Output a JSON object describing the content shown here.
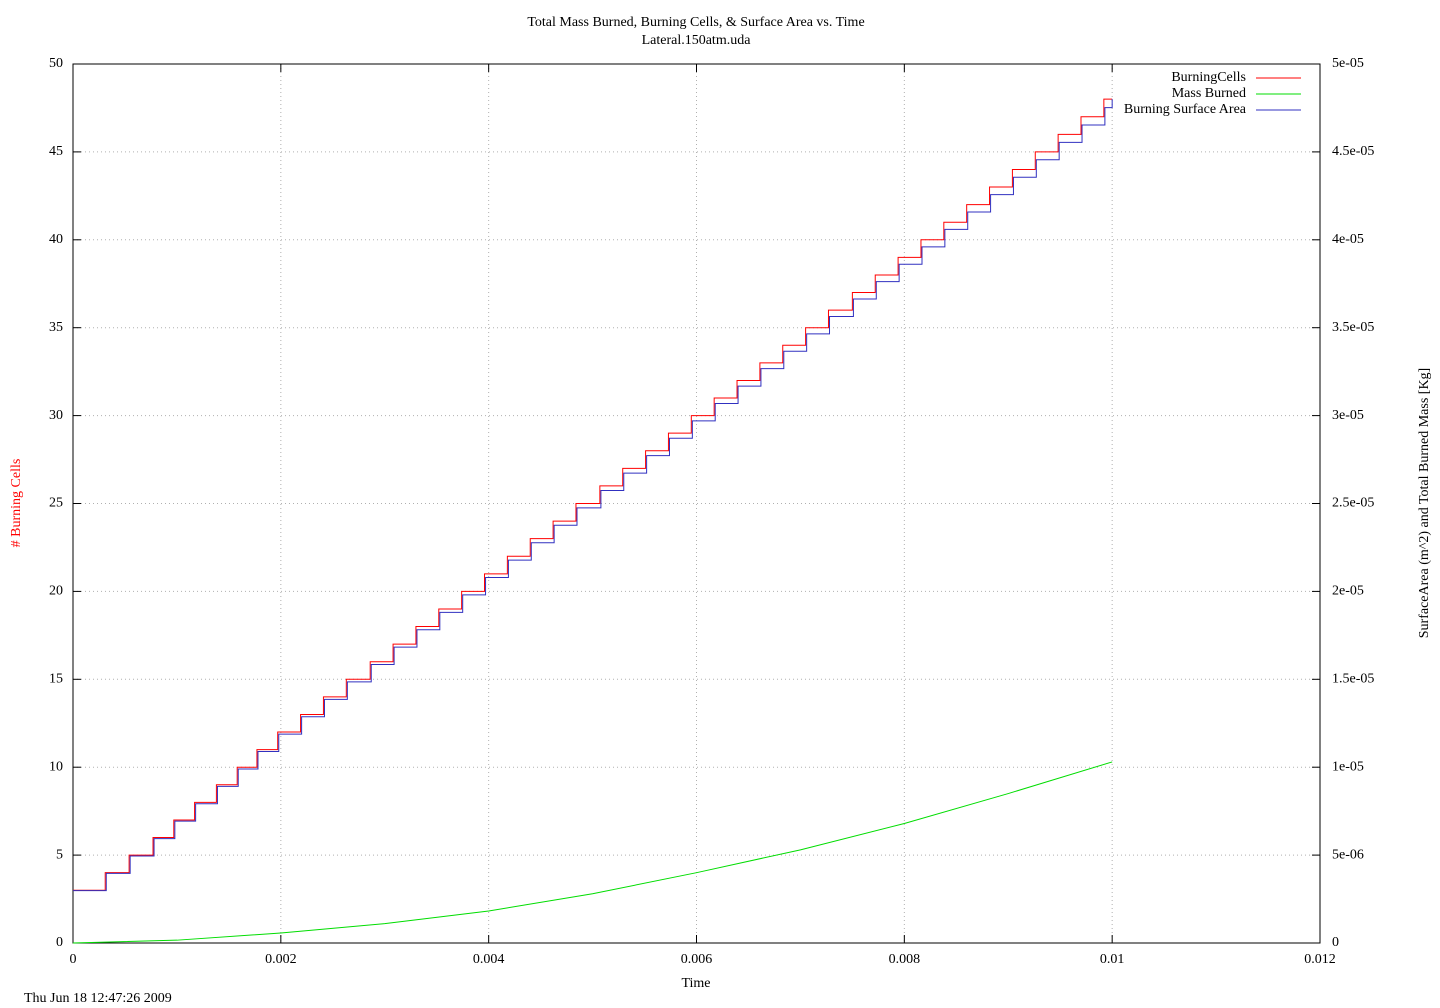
{
  "chart_data": {
    "type": "line",
    "title": "Total Mass Burned, Burning Cells, & Surface Area vs. Time",
    "subtitle": "Lateral.150atm.uda",
    "x_label": "Time",
    "y_label": "# Burning Cells",
    "y_label_color": "#ff0000",
    "y2_label": "SurfaceArea (m^2) and Total Burned Mass [Kg]",
    "timestamp": "Thu Jun 18 12:47:26 2009",
    "xlim": [
      0,
      0.012
    ],
    "xticks": [
      0,
      0.002,
      0.004,
      0.006,
      0.008,
      0.01,
      0.012
    ],
    "ylim": [
      0,
      50
    ],
    "yticks": [
      0,
      5,
      10,
      15,
      20,
      25,
      30,
      35,
      40,
      45,
      50
    ],
    "y2lim": [
      0,
      5e-05
    ],
    "y2ticks": [
      0,
      {
        "value": 5e-06,
        "label": "5e-06"
      },
      {
        "value": 1e-05,
        "label": "1e-05"
      },
      {
        "value": 1.5e-05,
        "label": "1.5e-05"
      },
      {
        "value": 2e-05,
        "label": "2e-05"
      },
      {
        "value": 2.5e-05,
        "label": "2.5e-05"
      },
      {
        "value": 3e-05,
        "label": "3e-05"
      },
      {
        "value": 3.5e-05,
        "label": "3.5e-05"
      },
      {
        "value": 4e-05,
        "label": "4e-05"
      },
      {
        "value": 4.5e-05,
        "label": "4.5e-05"
      },
      {
        "value": 5e-05,
        "label": "5e-05"
      }
    ],
    "grid": true,
    "legend": "top-right",
    "series": [
      {
        "name": "BurningCells",
        "color": "#ff0000",
        "step": true,
        "x": [
          0,
          0.00031,
          0.00054,
          0.00077,
          0.00097,
          0.00117,
          0.00138,
          0.00158,
          0.00177,
          0.00197,
          0.00219,
          0.00241,
          0.00263,
          0.00286,
          0.00308,
          0.0033,
          0.00352,
          0.00374,
          0.00396,
          0.00418,
          0.0044,
          0.00462,
          0.00484,
          0.00507,
          0.00529,
          0.00551,
          0.00573,
          0.00595,
          0.00617,
          0.00639,
          0.00661,
          0.00683,
          0.00705,
          0.00727,
          0.0075,
          0.00772,
          0.00794,
          0.00816,
          0.00838,
          0.0086,
          0.00882,
          0.00904,
          0.00926,
          0.00948,
          0.0097,
          0.00992,
          0.01
        ],
        "values": [
          3,
          4,
          5,
          6,
          7,
          8,
          9,
          10,
          11,
          12,
          13,
          14,
          15,
          16,
          17,
          18,
          19,
          20,
          21,
          22,
          23,
          24,
          25,
          26,
          27,
          28,
          29,
          30,
          31,
          32,
          33,
          34,
          35,
          36,
          37,
          38,
          39,
          40,
          41,
          42,
          43,
          44,
          45,
          46,
          47,
          48,
          48
        ]
      },
      {
        "name": "Mass Burned",
        "color": "#00dd00",
        "axis": "y2",
        "x": [
          0,
          0.001,
          0.002,
          0.003,
          0.004,
          0.005,
          0.006,
          0.007,
          0.008,
          0.009,
          0.01
        ],
        "values": [
          0,
          1.6e-07,
          5.7e-07,
          1.1e-06,
          1.82e-06,
          2.8e-06,
          4e-06,
          5.3e-06,
          6.8e-06,
          8.5e-06,
          1.03e-05
        ]
      },
      {
        "name": "Burning Surface Area",
        "color": "#3030c0",
        "axis": "y2",
        "step": true,
        "x": [
          0,
          0.00032,
          0.00055,
          0.00078,
          0.00098,
          0.00118,
          0.00139,
          0.00159,
          0.00178,
          0.00198,
          0.0022,
          0.00242,
          0.00264,
          0.00287,
          0.00309,
          0.00331,
          0.00353,
          0.00375,
          0.00397,
          0.00419,
          0.00441,
          0.00463,
          0.00485,
          0.00508,
          0.0053,
          0.00552,
          0.00574,
          0.00596,
          0.00618,
          0.0064,
          0.00662,
          0.00684,
          0.00706,
          0.00728,
          0.00751,
          0.00773,
          0.00795,
          0.00817,
          0.00839,
          0.00861,
          0.00883,
          0.00905,
          0.00927,
          0.00949,
          0.00971,
          0.00993,
          0.01
        ],
        "values": [
          2.98e-06,
          3.96e-06,
          4.95e-06,
          5.94e-06,
          6.93e-06,
          7.92e-06,
          8.91e-06,
          9.9e-06,
          1.089e-05,
          1.188e-05,
          1.287e-05,
          1.386e-05,
          1.485e-05,
          1.584e-05,
          1.683e-05,
          1.782e-05,
          1.881e-05,
          1.98e-05,
          2.079e-05,
          2.178e-05,
          2.277e-05,
          2.376e-05,
          2.475e-05,
          2.574e-05,
          2.673e-05,
          2.772e-05,
          2.871e-05,
          2.97e-05,
          3.069e-05,
          3.168e-05,
          3.267e-05,
          3.366e-05,
          3.465e-05,
          3.564e-05,
          3.663e-05,
          3.762e-05,
          3.861e-05,
          3.96e-05,
          4.059e-05,
          4.158e-05,
          4.257e-05,
          4.356e-05,
          4.455e-05,
          4.554e-05,
          4.653e-05,
          4.752e-05,
          4.8e-05
        ]
      }
    ]
  }
}
